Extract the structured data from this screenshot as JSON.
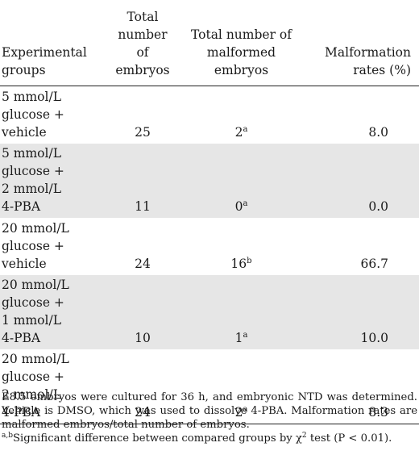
{
  "table": {
    "headers": {
      "group": [
        "Experimental",
        "groups"
      ],
      "total": [
        "Total",
        "number",
        "of",
        "embryos"
      ],
      "malformed": [
        "Total number of",
        "malformed",
        "embryos"
      ],
      "rate": [
        "Malformation",
        "rates (%)"
      ]
    },
    "rows": [
      {
        "group": [
          "5 mmol/L",
          "glucose +",
          "vehicle"
        ],
        "total": "25",
        "malformed": "2",
        "mark": "a",
        "rate": "8.0"
      },
      {
        "group": [
          "5 mmol/L",
          "glucose +",
          "2 mmol/L",
          "4-PBA"
        ],
        "total": "11",
        "malformed": "0",
        "mark": "a",
        "rate": "0.0"
      },
      {
        "group": [
          "20 mmol/L",
          "glucose +",
          "vehicle"
        ],
        "total": "24",
        "malformed": "16",
        "mark": "b",
        "rate": "66.7"
      },
      {
        "group": [
          "20 mmol/L",
          "glucose +",
          "1 mmol/L",
          "4-PBA"
        ],
        "total": "10",
        "malformed": "1",
        "mark": "a",
        "rate": "10.0"
      },
      {
        "group": [
          "20 mmol/L",
          "glucose +",
          "2 mmol/L",
          "4-PBA"
        ],
        "total": "24",
        "malformed": "2",
        "mark": "a",
        "rate": "8.3"
      }
    ]
  },
  "footnote": {
    "text": "E8.5 embryos were cultured for 36 h, and embryonic NTD was determined. Vehicle is DMSO, which was used to dissolve 4-PBA. Malformation rates are malformed embryos/total number of embryos.",
    "sig_marks": "a,b",
    "sig_text_1": "Significant difference between compared groups by χ",
    "sig_exp": "2",
    "sig_text_2": " test (P < 0.01)."
  }
}
